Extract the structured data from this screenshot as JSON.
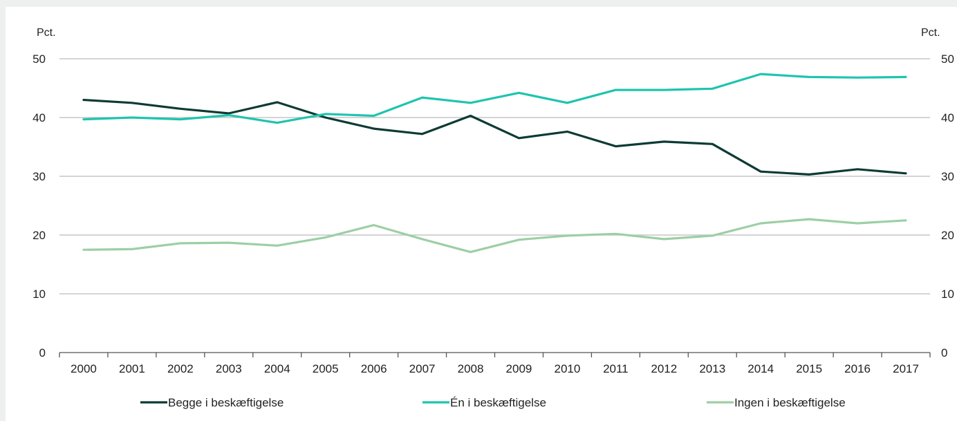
{
  "chart_data": {
    "type": "line",
    "categories": [
      "2000",
      "2001",
      "2002",
      "2003",
      "2004",
      "2005",
      "2006",
      "2007",
      "2008",
      "2009",
      "2010",
      "2011",
      "2012",
      "2013",
      "2014",
      "2015",
      "2016",
      "2017"
    ],
    "y_unit_left": "Pct.",
    "y_unit_right": "Pct.",
    "ylim": [
      0,
      50
    ],
    "yticks": [
      0,
      10,
      20,
      30,
      40,
      50
    ],
    "grid": true,
    "legend_position": "bottom",
    "series": [
      {
        "name": "Begge i beskæftigelse",
        "color": "#0d3b34",
        "values": [
          43.0,
          42.5,
          41.5,
          40.7,
          42.6,
          40.0,
          38.1,
          37.2,
          40.3,
          36.5,
          37.6,
          35.1,
          35.9,
          35.5,
          30.8,
          30.3,
          31.2,
          30.5
        ]
      },
      {
        "name": "Én i beskæftigelse",
        "color": "#1fc4ae",
        "values": [
          39.7,
          40.0,
          39.7,
          40.4,
          39.1,
          40.6,
          40.3,
          43.4,
          42.5,
          44.2,
          42.5,
          44.7,
          44.7,
          44.9,
          47.4,
          46.9,
          46.8,
          46.9
        ]
      },
      {
        "name": "Ingen i beskæftigelse",
        "color": "#9ccfa5",
        "values": [
          17.5,
          17.6,
          18.6,
          18.7,
          18.2,
          19.6,
          21.7,
          19.3,
          17.1,
          19.2,
          19.9,
          20.2,
          19.3,
          19.9,
          22.0,
          22.7,
          22.0,
          22.5
        ]
      }
    ]
  }
}
